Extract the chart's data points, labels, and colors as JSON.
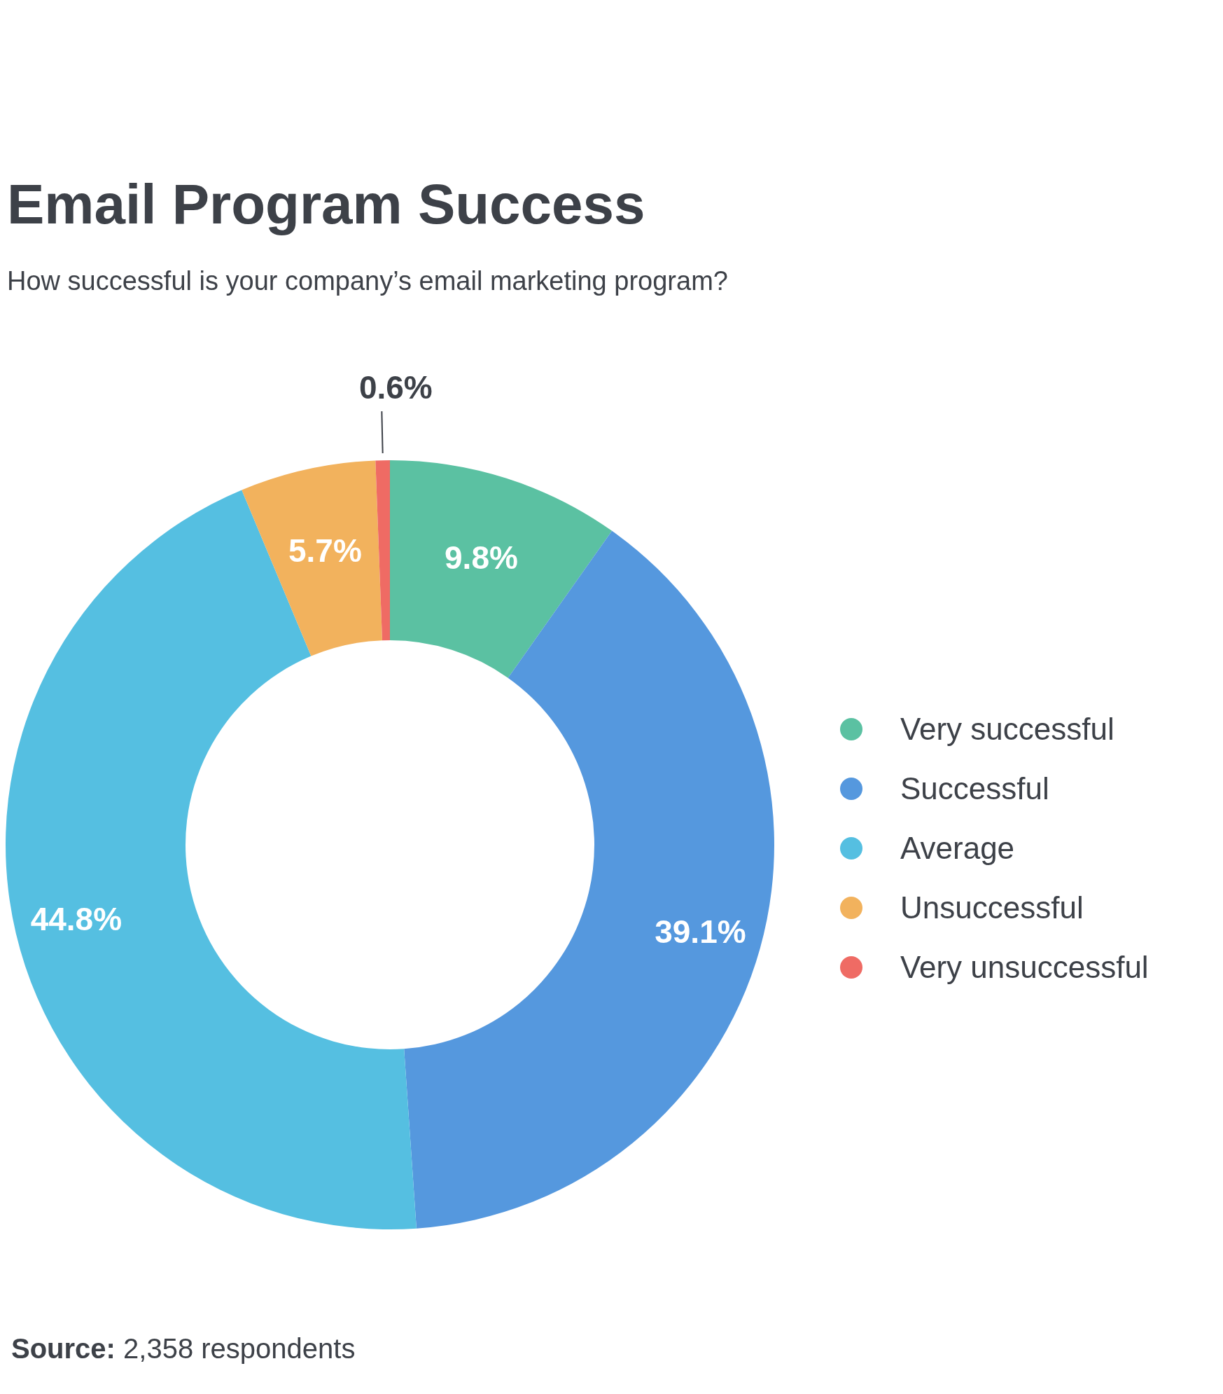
{
  "chart_data": {
    "type": "donut",
    "title": "Email Program Success",
    "subtitle": "How successful is your company’s email marketing program?",
    "categories": [
      "Very successful",
      "Successful",
      "Average",
      "Unsuccessful",
      "Very unsuccessful"
    ],
    "values": [
      9.8,
      39.1,
      44.8,
      5.7,
      0.6
    ],
    "colors": [
      "#5bc1a2",
      "#5598de",
      "#55bfe1",
      "#f2b25d",
      "#ef6b64"
    ],
    "value_labels": [
      "9.8%",
      "39.1%",
      "44.8%",
      "5.7%",
      "0.6%"
    ],
    "legend": "right",
    "annotations": [
      "Source: 2,358 respondents"
    ]
  }
}
